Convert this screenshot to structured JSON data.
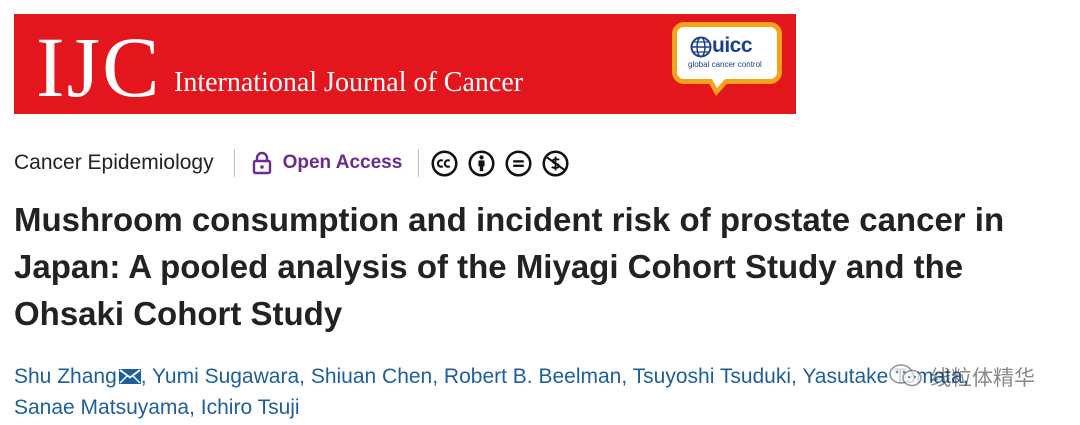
{
  "banner": {
    "logo_text": "IJC",
    "journal_name": "International Journal of Cancer",
    "uicc_logo": "uicc",
    "uicc_tagline": "global cancer control",
    "colors": {
      "background": "#e3161d",
      "bubble_border": "#f7a21b",
      "uicc_blue": "#1b3f8a"
    }
  },
  "meta": {
    "category": "Cancer Epidemiology",
    "access_icon": "lock-open-icon",
    "access_label": "Open Access",
    "access_color": "#6d2b8b",
    "license_icons": [
      "cc-icon",
      "by-attribution-icon",
      "nd-no-derivatives-icon",
      "nc-non-commercial-icon"
    ]
  },
  "article": {
    "title": "Mushroom consumption and incident risk of prostate cancer in Japan: A pooled analysis of the Miyagi Cohort Study and the Ohsaki Cohort Study"
  },
  "authors": {
    "link_color": "#1d5f9a",
    "list": [
      {
        "name": "Shu Zhang",
        "corresponding": true,
        "icon": "mail-icon"
      },
      {
        "name": "Yumi Sugawara",
        "corresponding": false
      },
      {
        "name": "Shiuan Chen",
        "corresponding": false
      },
      {
        "name": "Robert B. Beelman",
        "corresponding": false
      },
      {
        "name": "Tsuyoshi Tsuduki",
        "corresponding": false
      },
      {
        "name": "Yasutake Tomata",
        "corresponding": false
      },
      {
        "name": "Sanae Matsuyama",
        "corresponding": false
      },
      {
        "name": "Ichiro Tsuji",
        "corresponding": false
      }
    ]
  },
  "watermark": {
    "icon": "wechat-logo-icon",
    "text": "线粒体精华"
  }
}
